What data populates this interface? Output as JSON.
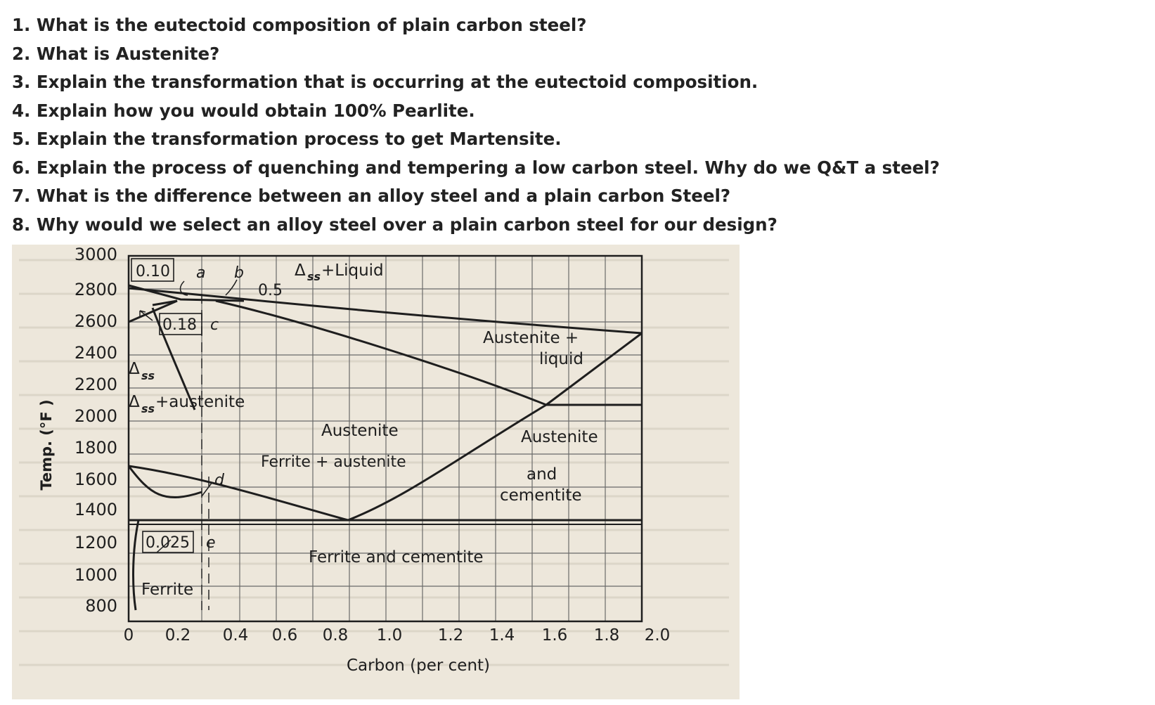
{
  "questions": [
    "1. What is the eutectoid composition of plain carbon steel?",
    "2. What is Austenite?",
    "3. Explain the transformation that is occurring at the eutectoid composition.",
    "4. Explain how you would obtain 100% Pearlite.",
    "5. Explain the transformation process to get Martensite.",
    "6. Explain the process of quenching and tempering a low carbon steel. Why do we Q&T a steel?",
    "7. What is the difference between an alloy steel and a plain carbon Steel?",
    "8. Why would we select an alloy steel over a plain carbon steel for our design?"
  ],
  "diagram": {
    "ylabel": "Temp. (°F )",
    "xlabel": "Carbon (per cent)",
    "y_ticks": [
      "3000",
      "2800",
      "2600",
      "2400",
      "2200",
      "2000",
      "1800",
      "1600",
      "1400",
      "1200",
      "1000",
      "800"
    ],
    "x_ticks": [
      "0",
      "0.2",
      "0.4",
      "0.6",
      "0.8",
      "1.0",
      "1.2",
      "1.4",
      "1.6",
      "1.8",
      "2.0"
    ],
    "regions": {
      "delta_liquid": "+Liquid",
      "austenite_liquid_1": "Austenite +",
      "austenite_liquid_2": "liquid",
      "delta_austenite": "+austenite",
      "austenite": "Austenite",
      "ferrite_austenite": "Ferrite + austenite",
      "austenite_cementite_1": "Austenite",
      "austenite_cementite_2": "and",
      "austenite_cementite_3": "cementite",
      "ferrite_cementite": "Ferrite and cementite",
      "ferrite": "Ferrite"
    },
    "delta_symbol": "Δ",
    "delta_sub": "ss",
    "point_labels": {
      "a": "a",
      "b": "b",
      "c": "c",
      "d": "d",
      "e": "e"
    },
    "compositions": {
      "p010": "0.10",
      "p05": "0.5",
      "p018": "0.18",
      "p0025": "0.025"
    },
    "colors": {
      "paper": "#ede7db",
      "ink": "#1e1e1e",
      "grid": "#5a5a5a"
    }
  }
}
